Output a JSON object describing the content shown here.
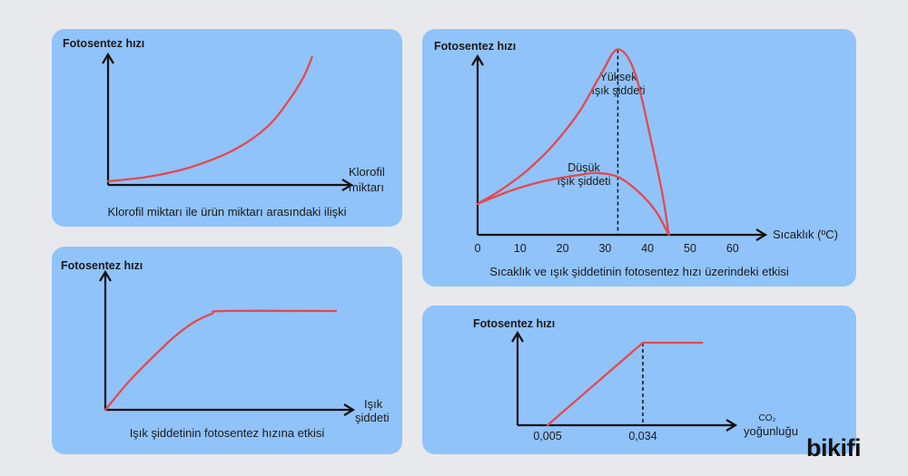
{
  "brand": "bikifi",
  "chart_data": [
    {
      "type": "line",
      "ylabel": "Fotosentez hızı",
      "xlabel": [
        "Klorofil",
        "miktarı"
      ],
      "title": "Klorofil miktarı ile ürün miktarı arasındaki ilişki",
      "series": [
        {
          "points": [
            [
              0,
              0
            ],
            [
              0.2,
              0.04
            ],
            [
              0.4,
              0.12
            ],
            [
              0.6,
              0.26
            ],
            [
              0.75,
              0.44
            ],
            [
              0.85,
              0.65
            ],
            [
              0.92,
              0.84
            ],
            [
              0.96,
              1.0
            ]
          ]
        }
      ]
    },
    {
      "type": "line",
      "ylabel": "Fotosentez hızı",
      "xlabel": [
        "Işık",
        "şiddeti"
      ],
      "title": "Işık şiddetinin fotosentez hızına etkisi",
      "series": [
        {
          "points": [
            [
              0,
              0
            ],
            [
              0.1,
              0.28
            ],
            [
              0.2,
              0.52
            ],
            [
              0.3,
              0.74
            ],
            [
              0.38,
              0.88
            ],
            [
              0.46,
              0.97
            ],
            [
              0.52,
              1.0
            ],
            [
              1.0,
              1.0
            ]
          ]
        }
      ]
    },
    {
      "type": "line",
      "ylabel": "Fotosentez hızı",
      "xlabel": "Sıcaklık (ºC)",
      "x_ticks": [
        0,
        10,
        20,
        30,
        40,
        50,
        60
      ],
      "xlim": [
        0,
        60
      ],
      "title": "Sıcaklık ve ışık şiddetinin fotosentez hızı üzerindeki etkisi",
      "marker_x": 33,
      "series": [
        {
          "name": "Yüksek ışık şiddeti",
          "label": [
            "Yüksek",
            "ışık şiddeti"
          ],
          "points": [
            [
              0,
              0.16
            ],
            [
              6,
              0.24
            ],
            [
              12,
              0.34
            ],
            [
              18,
              0.47
            ],
            [
              24,
              0.64
            ],
            [
              29,
              0.83
            ],
            [
              33,
              0.96
            ],
            [
              37,
              0.84
            ],
            [
              41,
              0.47
            ],
            [
              43.5,
              0.21
            ],
            [
              45,
              0
            ]
          ]
        },
        {
          "name": "Düşük ışık şiddeti",
          "label": [
            "Düşük",
            "ışık şiddeti"
          ],
          "points": [
            [
              0,
              0.16
            ],
            [
              8,
              0.23
            ],
            [
              16,
              0.28
            ],
            [
              24,
              0.31
            ],
            [
              28,
              0.32
            ],
            [
              33,
              0.3
            ],
            [
              38,
              0.22
            ],
            [
              42,
              0.12
            ],
            [
              45,
              0
            ]
          ]
        }
      ]
    },
    {
      "type": "line",
      "ylabel": "Fotosentez hızı",
      "xlabel": [
        "CO₂",
        "yoğunluğu"
      ],
      "x_ticks": [
        "0,005",
        "0,034"
      ],
      "title": "",
      "marker_x": 0.034,
      "series": [
        {
          "points": [
            [
              0.005,
              0
            ],
            [
              0.034,
              1
            ],
            [
              0.052,
              1
            ]
          ]
        }
      ]
    }
  ]
}
